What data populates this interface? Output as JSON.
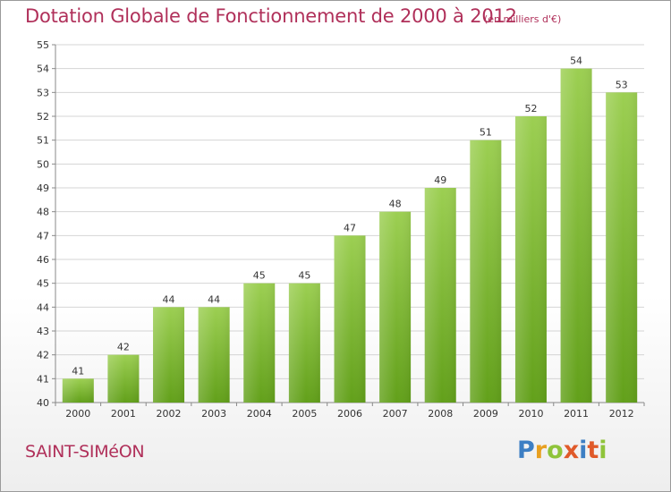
{
  "header": {
    "title": "Dotation Globale de Fonctionnement de 2000 à 2012",
    "unit": "(en milliers d'€)"
  },
  "footer": {
    "commune": "SAINT-SIMéON",
    "logo": "Proxiti"
  },
  "colors": {
    "bar_top": "#9ccf52",
    "bar_bottom": "#62a01a",
    "title": "#b0305a"
  },
  "chart_data": {
    "type": "bar",
    "title": "Dotation Globale de Fonctionnement de 2000 à 2012",
    "subtitle": "(en milliers d'€)",
    "xlabel": "",
    "ylabel": "",
    "categories": [
      "2000",
      "2001",
      "2002",
      "2003",
      "2004",
      "2005",
      "2006",
      "2007",
      "2008",
      "2009",
      "2010",
      "2011",
      "2012"
    ],
    "values": [
      41,
      42,
      44,
      44,
      45,
      45,
      47,
      48,
      49,
      51,
      52,
      54,
      53
    ],
    "ylim": [
      40,
      55
    ],
    "yticks": [
      "40",
      "41",
      "42",
      "43",
      "44",
      "45",
      "46",
      "47",
      "48",
      "49",
      "50",
      "51",
      "52",
      "53",
      "54",
      "55"
    ],
    "grid": true,
    "legend": "none"
  }
}
